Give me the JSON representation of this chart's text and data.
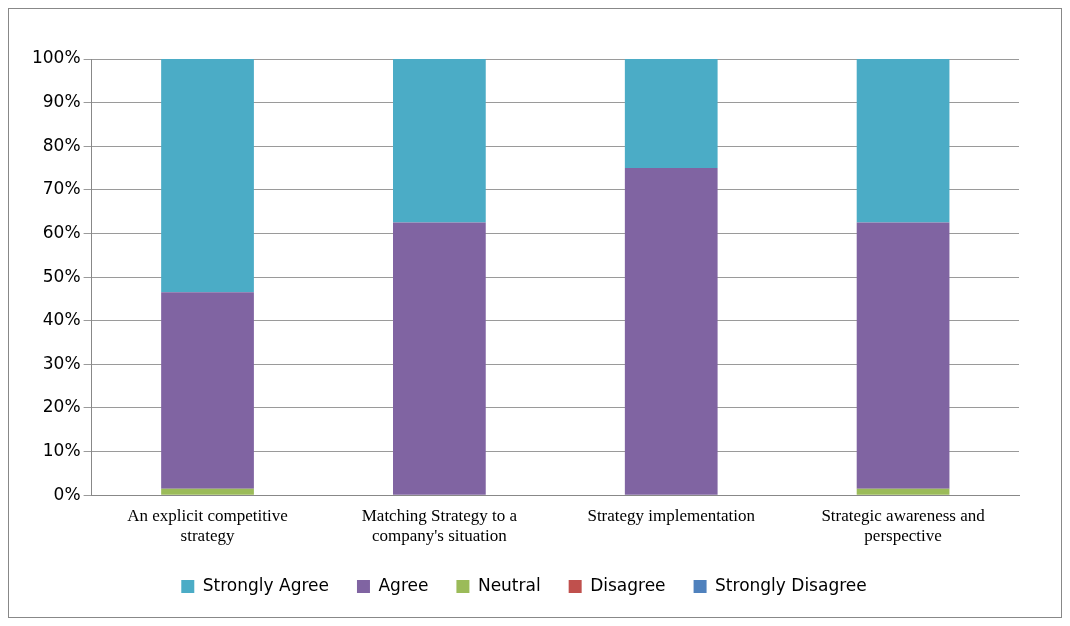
{
  "chart_data": {
    "type": "bar",
    "stacked": true,
    "categories": [
      "An explicit competitive strategy",
      "Matching Strategy to a company's situation",
      "Strategy implementation",
      "Strategic awareness and perspective"
    ],
    "series": [
      {
        "name": "Strongly Disagree",
        "color": "#4f81bd",
        "values": [
          0,
          0,
          0,
          0
        ]
      },
      {
        "name": "Disagree",
        "color": "#c0504d",
        "values": [
          0,
          0,
          0,
          0
        ]
      },
      {
        "name": "Neutral",
        "color": "#9bbb59",
        "values": [
          1.5,
          0,
          0,
          1.5
        ]
      },
      {
        "name": "Agree",
        "color": "#8064a2",
        "values": [
          45,
          62.5,
          75,
          61
        ]
      },
      {
        "name": "Strongly Agree",
        "color": "#4bacc6",
        "values": [
          53.5,
          37.5,
          25,
          37.5
        ]
      }
    ],
    "ylim": [
      0,
      100
    ],
    "yticks": [
      {
        "value": 0,
        "label": "0%"
      },
      {
        "value": 10,
        "label": "10%"
      },
      {
        "value": 20,
        "label": "20%"
      },
      {
        "value": 30,
        "label": "30%"
      },
      {
        "value": 40,
        "label": "40%"
      },
      {
        "value": 50,
        "label": "50%"
      },
      {
        "value": 60,
        "label": "60%"
      },
      {
        "value": 70,
        "label": "70%"
      },
      {
        "value": 80,
        "label": "80%"
      },
      {
        "value": 90,
        "label": "90%"
      },
      {
        "value": 100,
        "label": "100%"
      }
    ],
    "grid": "y",
    "legend": "bottom"
  }
}
